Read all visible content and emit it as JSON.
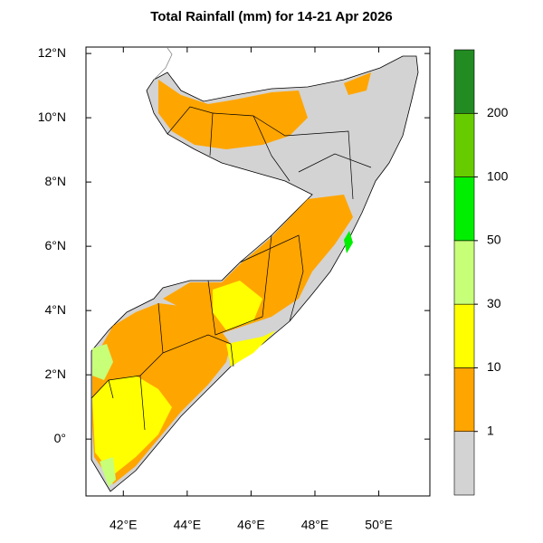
{
  "map": {
    "title": "Total Rainfall (mm) for 14-21 Apr 2026",
    "xlim": [
      40.83,
      51.6
    ],
    "ylim": [
      -1.77,
      12.2
    ],
    "xticks": [
      {
        "value": 42,
        "label": "42°E"
      },
      {
        "value": 44,
        "label": "44°E"
      },
      {
        "value": 46,
        "label": "46°E"
      },
      {
        "value": 48,
        "label": "48°E"
      },
      {
        "value": 50,
        "label": "50°E"
      }
    ],
    "yticks": [
      {
        "value": 0,
        "label": "0°"
      },
      {
        "value": 2,
        "label": "2°N"
      },
      {
        "value": 4,
        "label": "4°N"
      },
      {
        "value": 6,
        "label": "6°N"
      },
      {
        "value": 8,
        "label": "8°N"
      },
      {
        "value": 10,
        "label": "10°N"
      },
      {
        "value": 12,
        "label": "12°N"
      }
    ],
    "colorbar": {
      "levels": [
        1,
        10,
        30,
        50,
        100,
        200
      ],
      "colors": [
        "#d3d3d3",
        "#ffa500",
        "#ffff00",
        "#c8ff78",
        "#00ee00",
        "#66cc00",
        "#228b22"
      ]
    }
  }
}
